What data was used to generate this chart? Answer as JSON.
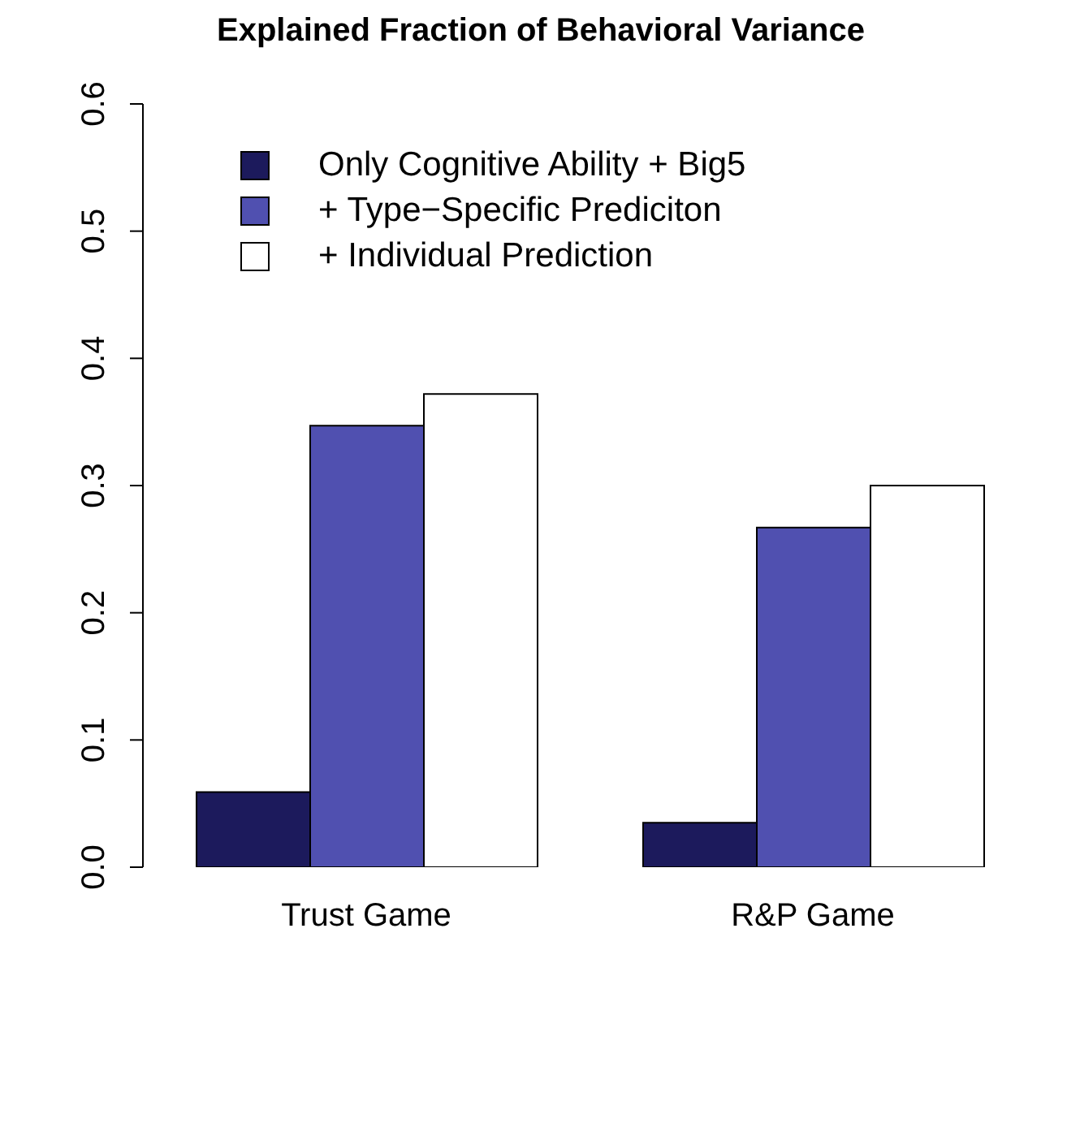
{
  "chart_data": {
    "type": "bar",
    "title": "Explained Fraction of Behavioral Variance",
    "categories": [
      "Trust Game",
      "R&P Game"
    ],
    "series": [
      {
        "name": "Only Cognitive Ability + Big5",
        "color": "#1c1a5c",
        "values": [
          0.059,
          0.035
        ]
      },
      {
        "name": "+ Type−Specific Prediciton",
        "color": "#5050b0",
        "values": [
          0.347,
          0.267
        ]
      },
      {
        "name": "+ Individual Prediction",
        "color": "#ffffff",
        "values": [
          0.372,
          0.3
        ]
      }
    ],
    "ylim": [
      0,
      0.6
    ],
    "yticks": [
      {
        "value": 0,
        "label": "0.0"
      },
      0.1,
      0.2,
      0.3,
      0.4,
      0.5,
      0.6
    ],
    "grid": false,
    "legend": "top"
  }
}
